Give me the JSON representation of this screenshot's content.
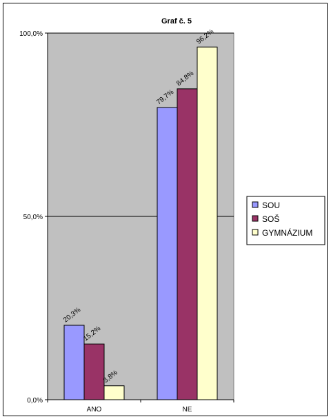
{
  "chart_data": {
    "type": "bar",
    "title": "Graf č. 5",
    "categories": [
      "ANO",
      "NE"
    ],
    "series": [
      {
        "name": "SOU",
        "values": [
          20.3,
          79.7
        ],
        "labels": [
          "20,3%",
          "79,7%"
        ],
        "color": "#9999FF"
      },
      {
        "name": "SOŠ",
        "values": [
          15.2,
          84.8
        ],
        "labels": [
          "15,2%",
          "84,8%"
        ],
        "color": "#993366"
      },
      {
        "name": "GYMNÁZIUM",
        "values": [
          3.8,
          96.2
        ],
        "labels": [
          "3,8%",
          "96,2%"
        ],
        "color": "#FFFFCC"
      }
    ],
    "ylim": [
      0,
      100
    ],
    "yticks": [
      0,
      50,
      100
    ],
    "ytick_labels": [
      "0,0%",
      "50,0%",
      "100,0%"
    ],
    "grid": true,
    "plot_background": "#C0C0C0",
    "legend_position": "right"
  }
}
